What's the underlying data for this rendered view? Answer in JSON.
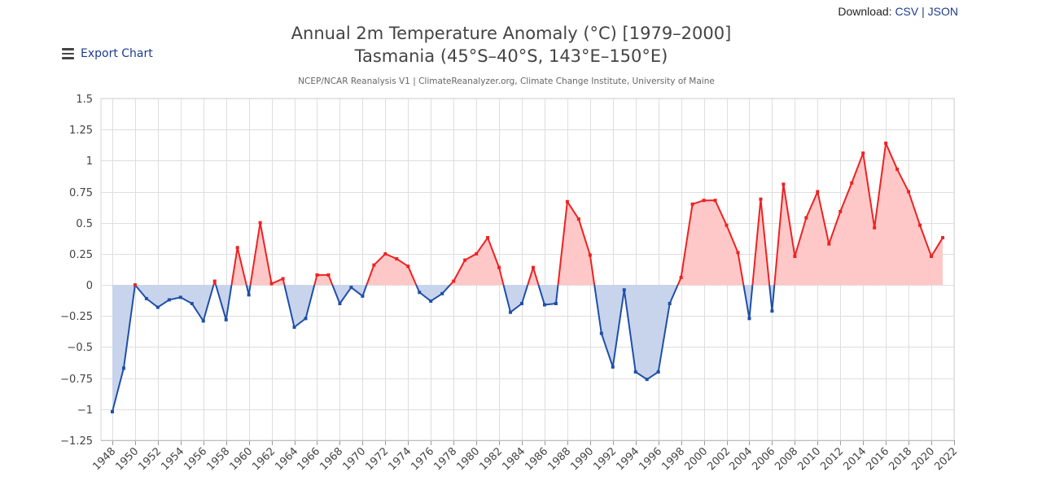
{
  "download": {
    "label": "Download:",
    "csv": "CSV",
    "sep": "|",
    "json": "JSON"
  },
  "export": {
    "label": "Export Chart"
  },
  "chart_data": {
    "type": "line",
    "title": "Annual 2m Temperature Anomaly (°C) [1979–2000]",
    "title_line2": "Tasmania (45°S–40°S, 143°E–150°E)",
    "subtitle": "NCEP/NCAR Reanalysis V1 | ClimateReanalyzer.org, Climate Change Institute, University of Maine",
    "xlabel": "",
    "ylabel": "",
    "xlim": [
      1947,
      2022
    ],
    "ylim": [
      -1.25,
      1.5
    ],
    "yticks": [
      1.5,
      1.25,
      1,
      0.75,
      0.5,
      0.25,
      0,
      -0.25,
      -0.5,
      -0.75,
      -1,
      -1.25
    ],
    "ytick_labels": [
      "1.5",
      "1.25",
      "1",
      "0.75",
      "0.5",
      "0.25",
      "0",
      "−0.25",
      "−0.5",
      "−0.75",
      "−1",
      "−1.25"
    ],
    "xticks": [
      1948,
      1950,
      1952,
      1954,
      1956,
      1958,
      1960,
      1962,
      1964,
      1966,
      1968,
      1970,
      1972,
      1974,
      1976,
      1978,
      1980,
      1982,
      1984,
      1986,
      1988,
      1990,
      1992,
      1994,
      1996,
      1998,
      2000,
      2002,
      2004,
      2006,
      2008,
      2010,
      2012,
      2014,
      2016,
      2018,
      2020,
      2022
    ],
    "grid": true,
    "positive_color": "#ee2222",
    "negative_color": "#1f4fa8",
    "positive_fill": "#ffc8c8",
    "negative_fill": "#c8d4ec",
    "series": [
      {
        "name": "Anomaly",
        "x": [
          1948,
          1949,
          1950,
          1951,
          1952,
          1953,
          1954,
          1955,
          1956,
          1957,
          1958,
          1959,
          1960,
          1961,
          1962,
          1963,
          1964,
          1965,
          1966,
          1967,
          1968,
          1969,
          1970,
          1971,
          1972,
          1973,
          1974,
          1975,
          1976,
          1977,
          1978,
          1979,
          1980,
          1981,
          1982,
          1983,
          1984,
          1985,
          1986,
          1987,
          1988,
          1989,
          1990,
          1991,
          1992,
          1993,
          1994,
          1995,
          1996,
          1997,
          1998,
          1999,
          2000,
          2001,
          2002,
          2003,
          2004,
          2005,
          2006,
          2007,
          2008,
          2009,
          2010,
          2011,
          2012,
          2013,
          2014,
          2015,
          2016,
          2017,
          2018,
          2019,
          2020,
          2021
        ],
        "values": [
          -1.02,
          -0.67,
          0.0,
          -0.11,
          -0.18,
          -0.12,
          -0.1,
          -0.15,
          -0.29,
          0.03,
          -0.28,
          0.3,
          -0.08,
          0.5,
          0.01,
          0.05,
          -0.34,
          -0.27,
          0.08,
          0.08,
          -0.15,
          -0.02,
          -0.09,
          0.16,
          0.25,
          0.21,
          0.15,
          -0.06,
          -0.13,
          -0.07,
          0.03,
          0.2,
          0.25,
          0.38,
          0.14,
          -0.22,
          -0.15,
          0.14,
          -0.16,
          -0.15,
          0.67,
          0.53,
          0.24,
          -0.39,
          -0.66,
          -0.04,
          -0.7,
          -0.76,
          -0.7,
          -0.15,
          0.06,
          0.65,
          0.68,
          0.68,
          0.48,
          0.26,
          -0.27,
          0.69,
          -0.21,
          0.81,
          0.23,
          0.54,
          0.75,
          0.33,
          0.59,
          0.82,
          1.06,
          0.46,
          1.14,
          0.93,
          0.75,
          0.48,
          0.23,
          0.38
        ]
      }
    ]
  }
}
